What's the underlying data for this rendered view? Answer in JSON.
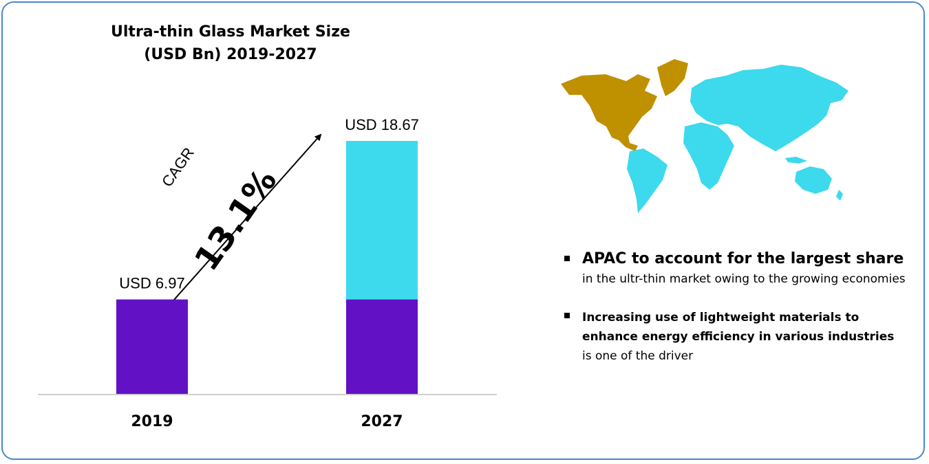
{
  "title_line1": "Ultra-thin Glass Market Size",
  "title_line2": "(USD Bn) 2019-2027",
  "cagr": {
    "label": "CAGR",
    "value": "13.1%"
  },
  "chart_data": {
    "type": "bar",
    "categories": [
      "2019",
      "2027"
    ],
    "values": [
      6.97,
      18.67
    ],
    "value_labels": [
      "USD 6.97",
      "USD 18.67"
    ],
    "base_value": 6.97,
    "colors": {
      "base": "#6211c4",
      "growth": "#3dd9ec",
      "axis": "#bfbfbf"
    },
    "title": "Ultra-thin Glass Market Size (USD Bn) 2019-2027"
  },
  "map_colors": {
    "north_america": "#bf9000",
    "rest_of_world": "#3dd9ec"
  },
  "bullets": {
    "b1_head": "APAC to account for the largest share",
    "b1_text": "in the ultr-thin market owing to the growing economies",
    "b2_head": "Increasing use of lightweight materials to enhance energy efficiency in various industries",
    "b2_text": "is one of the driver"
  }
}
